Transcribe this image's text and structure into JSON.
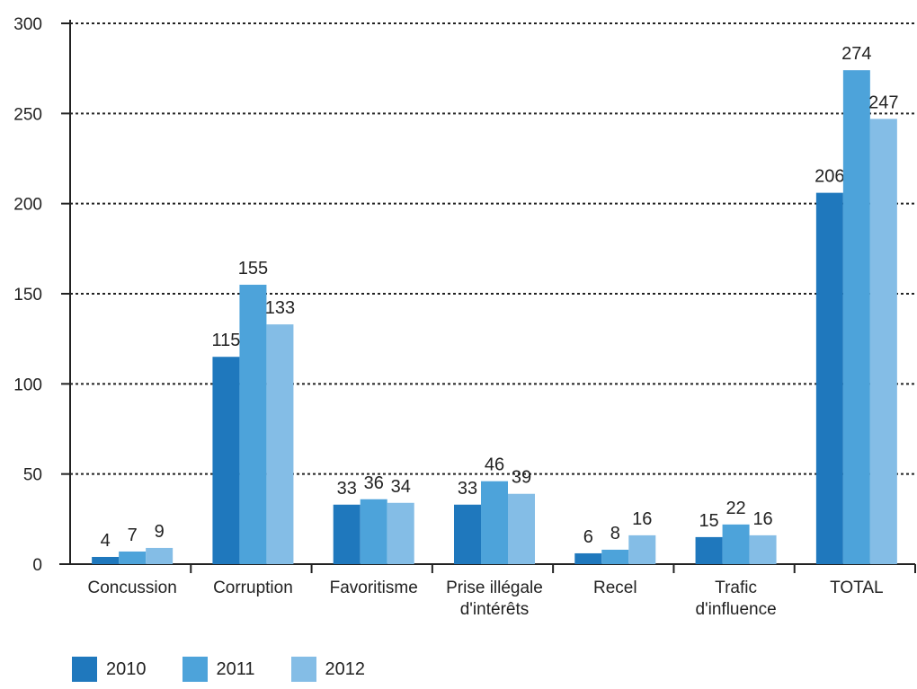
{
  "chart_data": {
    "type": "bar",
    "title": "",
    "xlabel": "",
    "ylabel": "",
    "ylim": [
      0,
      300
    ],
    "yticks": [
      "0",
      "50",
      "100",
      "150",
      "200",
      "250",
      "300"
    ],
    "grid": true,
    "legend_position": "bottom-left",
    "categories": [
      [
        "Concussion"
      ],
      [
        "Corruption"
      ],
      [
        "Favoritisme"
      ],
      [
        "Prise illégale",
        "d'intérêts"
      ],
      [
        "Recel"
      ],
      [
        "Trafic",
        "d'influence"
      ],
      [
        "TOTAL"
      ]
    ],
    "series": [
      {
        "name": "2010",
        "color": "#1f78bd",
        "values": [
          4,
          115,
          33,
          33,
          6,
          15,
          206
        ]
      },
      {
        "name": "2011",
        "color": "#4da3da",
        "values": [
          7,
          155,
          36,
          46,
          8,
          22,
          274
        ]
      },
      {
        "name": "2012",
        "color": "#84bde6",
        "values": [
          9,
          133,
          34,
          39,
          16,
          16,
          247
        ]
      }
    ]
  }
}
